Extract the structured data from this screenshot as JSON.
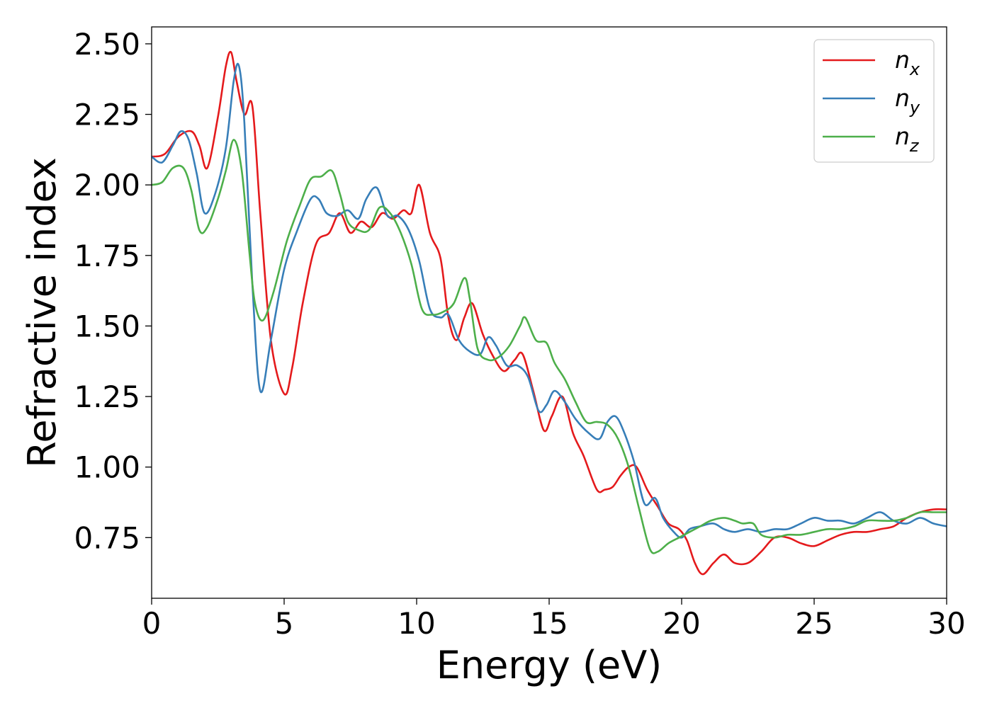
{
  "chart_data": {
    "type": "line",
    "title": "",
    "xlabel": "Energy (eV)",
    "ylabel": "Refractive index",
    "xlim": [
      0,
      30
    ],
    "ylim": [
      0.535,
      2.56
    ],
    "xticks": [
      0,
      5,
      10,
      15,
      20,
      25,
      30
    ],
    "xtick_labels": [
      "0",
      "5",
      "10",
      "15",
      "20",
      "25",
      "30"
    ],
    "yticks": [
      0.75,
      1.0,
      1.25,
      1.5,
      1.75,
      2.0,
      2.25,
      2.5
    ],
    "ytick_labels": [
      "0.75",
      "1.00",
      "1.25",
      "1.50",
      "1.75",
      "2.00",
      "2.25",
      "2.50"
    ],
    "grid": false,
    "legend_position": "top-right",
    "series": [
      {
        "name": "n_x",
        "base": "n",
        "sub": "x",
        "color": "#e41a1c",
        "x": [
          0,
          0.5,
          1.0,
          1.5,
          1.8,
          2.1,
          2.5,
          2.8,
          3.0,
          3.2,
          3.5,
          3.8,
          4.1,
          4.5,
          5.0,
          5.3,
          5.7,
          6.2,
          6.7,
          7.1,
          7.5,
          7.9,
          8.3,
          8.7,
          9.1,
          9.5,
          9.8,
          10.1,
          10.5,
          10.9,
          11.2,
          11.5,
          11.8,
          12.1,
          12.5,
          12.9,
          13.3,
          13.7,
          14.0,
          14.4,
          14.8,
          15.1,
          15.5,
          15.9,
          16.3,
          16.8,
          17.1,
          17.4,
          17.7,
          18.0,
          18.3,
          18.7,
          19.1,
          19.5,
          19.9,
          20.2,
          20.5,
          20.8,
          21.2,
          21.6,
          22.0,
          22.5,
          23.0,
          23.5,
          24.0,
          24.5,
          25.0,
          25.5,
          26.0,
          26.5,
          27.0,
          27.5,
          28.0,
          28.5,
          29.0,
          29.5,
          30.0
        ],
        "values": [
          2.1,
          2.11,
          2.17,
          2.19,
          2.14,
          2.06,
          2.24,
          2.42,
          2.47,
          2.37,
          2.25,
          2.28,
          1.9,
          1.45,
          1.26,
          1.35,
          1.58,
          1.79,
          1.83,
          1.9,
          1.83,
          1.87,
          1.85,
          1.9,
          1.88,
          1.91,
          1.9,
          2.0,
          1.83,
          1.74,
          1.53,
          1.45,
          1.53,
          1.58,
          1.47,
          1.39,
          1.34,
          1.38,
          1.4,
          1.27,
          1.13,
          1.18,
          1.25,
          1.12,
          1.04,
          0.92,
          0.92,
          0.93,
          0.97,
          1.0,
          1.0,
          0.92,
          0.86,
          0.8,
          0.78,
          0.74,
          0.66,
          0.62,
          0.66,
          0.69,
          0.66,
          0.66,
          0.7,
          0.75,
          0.75,
          0.73,
          0.72,
          0.74,
          0.76,
          0.77,
          0.77,
          0.78,
          0.79,
          0.82,
          0.84,
          0.85,
          0.85
        ]
      },
      {
        "name": "n_y",
        "base": "n",
        "sub": "y",
        "color": "#377eb8",
        "x": [
          0,
          0.4,
          0.8,
          1.1,
          1.4,
          1.7,
          2.0,
          2.4,
          2.8,
          3.1,
          3.3,
          3.5,
          3.8,
          4.1,
          4.5,
          5.0,
          5.5,
          6.0,
          6.3,
          6.6,
          7.0,
          7.4,
          7.8,
          8.1,
          8.5,
          8.9,
          9.3,
          9.7,
          10.1,
          10.5,
          10.9,
          11.2,
          11.6,
          12.0,
          12.4,
          12.7,
          13.0,
          13.4,
          13.8,
          14.2,
          14.6,
          14.9,
          15.2,
          15.6,
          16.0,
          16.5,
          16.9,
          17.2,
          17.5,
          17.8,
          18.2,
          18.6,
          19.0,
          19.3,
          19.7,
          20.0,
          20.3,
          20.7,
          21.2,
          21.6,
          22.0,
          22.5,
          23.0,
          23.5,
          24.0,
          24.5,
          25.0,
          25.5,
          26.0,
          26.5,
          27.0,
          27.5,
          28.0,
          28.5,
          29.0,
          29.5,
          30.0
        ],
        "values": [
          2.1,
          2.08,
          2.14,
          2.19,
          2.16,
          2.04,
          1.9,
          1.97,
          2.13,
          2.37,
          2.42,
          2.22,
          1.65,
          1.27,
          1.45,
          1.7,
          1.84,
          1.95,
          1.95,
          1.9,
          1.89,
          1.91,
          1.88,
          1.95,
          1.99,
          1.89,
          1.89,
          1.84,
          1.73,
          1.56,
          1.53,
          1.54,
          1.45,
          1.41,
          1.4,
          1.46,
          1.43,
          1.36,
          1.36,
          1.32,
          1.2,
          1.22,
          1.27,
          1.23,
          1.17,
          1.12,
          1.1,
          1.16,
          1.18,
          1.13,
          1.02,
          0.87,
          0.89,
          0.82,
          0.77,
          0.75,
          0.78,
          0.79,
          0.8,
          0.78,
          0.77,
          0.78,
          0.77,
          0.78,
          0.78,
          0.8,
          0.82,
          0.81,
          0.81,
          0.8,
          0.82,
          0.84,
          0.81,
          0.8,
          0.82,
          0.8,
          0.79
        ]
      },
      {
        "name": "n_z",
        "base": "n",
        "sub": "z",
        "color": "#4daf4a",
        "x": [
          0,
          0.4,
          0.8,
          1.2,
          1.5,
          1.8,
          2.1,
          2.5,
          2.8,
          3.1,
          3.4,
          3.7,
          3.9,
          4.2,
          4.6,
          5.1,
          5.6,
          6.0,
          6.4,
          6.8,
          7.1,
          7.4,
          7.8,
          8.2,
          8.6,
          9.0,
          9.4,
          9.8,
          10.2,
          10.6,
          11.0,
          11.4,
          11.8,
          12.0,
          12.3,
          12.7,
          13.1,
          13.5,
          13.9,
          14.1,
          14.5,
          14.9,
          15.2,
          15.6,
          16.0,
          16.4,
          16.8,
          17.2,
          17.6,
          18.0,
          18.4,
          18.8,
          19.1,
          19.5,
          19.9,
          20.3,
          20.7,
          21.1,
          21.6,
          22.0,
          22.3,
          22.7,
          23.0,
          23.5,
          24.0,
          24.5,
          25.0,
          25.5,
          26.0,
          26.5,
          27.0,
          27.5,
          28.0,
          28.5,
          29.0,
          29.5,
          30.0
        ],
        "values": [
          2.0,
          2.01,
          2.06,
          2.06,
          1.98,
          1.84,
          1.85,
          1.95,
          2.05,
          2.16,
          2.05,
          1.75,
          1.58,
          1.52,
          1.62,
          1.8,
          1.93,
          2.02,
          2.03,
          2.05,
          1.97,
          1.87,
          1.84,
          1.84,
          1.92,
          1.9,
          1.83,
          1.72,
          1.56,
          1.54,
          1.55,
          1.58,
          1.67,
          1.6,
          1.42,
          1.38,
          1.39,
          1.43,
          1.5,
          1.53,
          1.45,
          1.44,
          1.37,
          1.31,
          1.23,
          1.16,
          1.16,
          1.15,
          1.1,
          1.0,
          0.85,
          0.71,
          0.7,
          0.73,
          0.75,
          0.77,
          0.79,
          0.81,
          0.82,
          0.81,
          0.8,
          0.8,
          0.76,
          0.75,
          0.76,
          0.76,
          0.77,
          0.78,
          0.78,
          0.79,
          0.81,
          0.81,
          0.81,
          0.82,
          0.84,
          0.84,
          0.84
        ]
      }
    ]
  }
}
